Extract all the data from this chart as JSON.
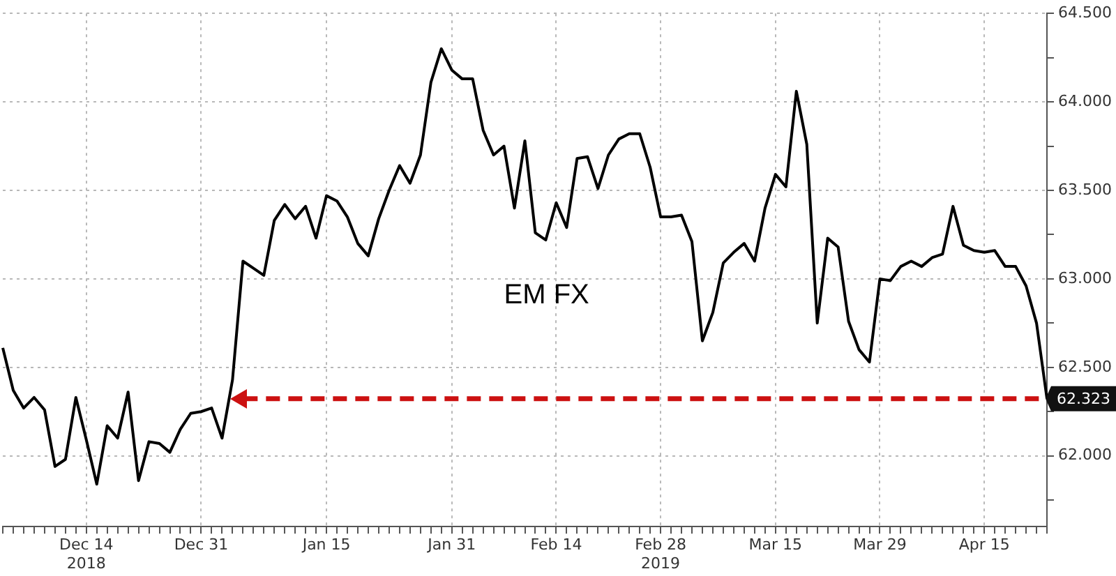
{
  "chart_data": {
    "type": "line",
    "categories": [
      null,
      null,
      null,
      null,
      null,
      null,
      null,
      null,
      "Dec 14\n2018",
      null,
      null,
      null,
      null,
      null,
      null,
      null,
      null,
      null,
      null,
      "Dec 31",
      null,
      null,
      null,
      null,
      null,
      null,
      null,
      null,
      null,
      null,
      null,
      "Jan 15",
      null,
      null,
      null,
      null,
      null,
      null,
      null,
      null,
      null,
      null,
      null,
      "Jan 31",
      null,
      null,
      null,
      null,
      null,
      null,
      null,
      null,
      null,
      "Feb 14",
      null,
      null,
      null,
      null,
      null,
      null,
      null,
      null,
      null,
      "Feb 28\n2019",
      null,
      null,
      null,
      null,
      null,
      null,
      null,
      null,
      null,
      null,
      "Mar 15",
      null,
      null,
      null,
      null,
      null,
      null,
      null,
      null,
      null,
      "Mar 29",
      null,
      null,
      null,
      null,
      null,
      null,
      null,
      null,
      null,
      "Apr 15",
      null,
      null,
      null,
      null,
      null,
      null
    ],
    "series": [
      {
        "name": "EM FX",
        "color": "#000000",
        "values": [
          62.61,
          62.37,
          62.27,
          62.33,
          62.26,
          61.94,
          61.98,
          62.33,
          62.09,
          61.84,
          62.17,
          62.1,
          62.36,
          61.86,
          62.08,
          62.07,
          62.02,
          62.15,
          62.24,
          62.25,
          62.27,
          62.1,
          62.43,
          63.1,
          63.06,
          63.02,
          63.33,
          63.42,
          63.34,
          63.41,
          63.23,
          63.47,
          63.44,
          63.35,
          63.2,
          63.13,
          63.34,
          63.5,
          63.64,
          63.54,
          63.7,
          64.11,
          64.3,
          64.18,
          64.13,
          64.13,
          63.84,
          63.7,
          63.75,
          63.4,
          63.78,
          63.26,
          63.22,
          63.43,
          63.29,
          63.68,
          63.69,
          63.51,
          63.7,
          63.79,
          63.82,
          63.82,
          63.63,
          63.35,
          63.35,
          63.36,
          63.21,
          62.65,
          62.81,
          63.09,
          63.15,
          63.2,
          63.1,
          63.4,
          63.59,
          63.52,
          64.06,
          63.76,
          62.75,
          63.23,
          63.18,
          62.76,
          62.6,
          62.53,
          63.0,
          62.99,
          63.07,
          63.1,
          63.07,
          63.12,
          63.14,
          63.41,
          63.19,
          63.16,
          63.15,
          63.16,
          63.07,
          63.07,
          62.96,
          62.75,
          62.323
        ]
      }
    ],
    "ylim": [
      61.6,
      64.5
    ],
    "yticks": [
      {
        "value": 61.75,
        "label": null
      },
      {
        "value": 62,
        "label": "62.000"
      },
      {
        "value": 62.25,
        "label": null
      },
      {
        "value": 62.5,
        "label": "62.500"
      },
      {
        "value": 62.75,
        "label": null
      },
      {
        "value": 63,
        "label": "63.000"
      },
      {
        "value": 63.25,
        "label": null
      },
      {
        "value": 63.5,
        "label": "63.500"
      },
      {
        "value": 63.75,
        "label": null
      },
      {
        "value": 64,
        "label": "64.000"
      },
      {
        "value": 64.25,
        "label": null
      },
      {
        "value": 64.5,
        "label": "64.500"
      }
    ],
    "grid": true,
    "marker": "none",
    "line_style": "solid",
    "ref_lines": [
      {
        "axis": "y",
        "value": 62.323,
        "label": "62.323",
        "color": "#cc1111",
        "line_style": "dashed"
      }
    ]
  }
}
